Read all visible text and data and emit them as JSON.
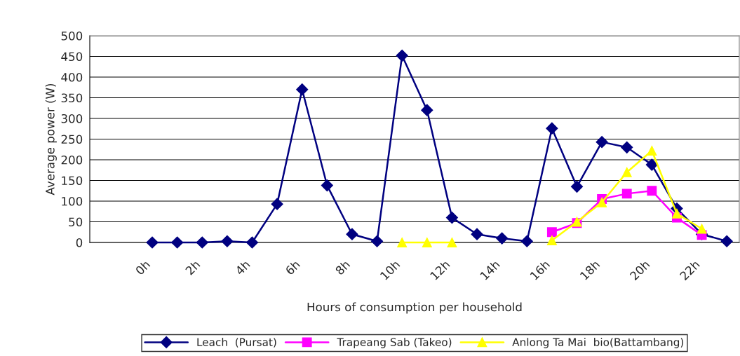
{
  "chart_data": {
    "type": "line",
    "xlabel": "Hours of consumption per household",
    "ylabel": "Average power (W)",
    "categories": [
      null,
      null,
      "0h",
      null,
      "2h",
      null,
      "4h",
      null,
      "6h",
      null,
      "8h",
      null,
      "10h",
      null,
      "12h",
      null,
      "14h",
      null,
      "16h",
      null,
      "18h",
      null,
      "20h",
      null,
      "22h",
      null
    ],
    "series": [
      {
        "name": "Leach  (Pursat)",
        "color": "#000080",
        "marker": "diamond",
        "values": [
          null,
          null,
          0,
          0,
          0,
          3,
          0,
          93,
          370,
          138,
          20,
          3,
          452,
          320,
          60,
          20,
          10,
          3,
          276,
          135,
          243,
          230,
          188,
          82,
          20,
          3
        ]
      },
      {
        "name": "Trapeang Sab (Takeo)",
        "color": "#ff00ff",
        "marker": "square",
        "values": [
          null,
          null,
          null,
          null,
          null,
          null,
          null,
          null,
          null,
          null,
          null,
          null,
          null,
          null,
          null,
          null,
          null,
          null,
          25,
          47,
          105,
          118,
          125,
          60,
          18,
          null
        ]
      },
      {
        "name": "Anlong Ta Mai  bio(Battambang)",
        "color": "#ffff00",
        "marker": "triangle",
        "values": [
          null,
          null,
          null,
          null,
          null,
          null,
          null,
          null,
          null,
          null,
          null,
          null,
          0,
          0,
          0,
          null,
          null,
          null,
          5,
          50,
          97,
          170,
          222,
          70,
          33,
          null
        ]
      }
    ],
    "ylim": [
      0,
      500
    ],
    "yticks": [
      0,
      50,
      100,
      150,
      200,
      250,
      300,
      350,
      400,
      450,
      500
    ],
    "grid": "y",
    "legend": "bottom"
  }
}
